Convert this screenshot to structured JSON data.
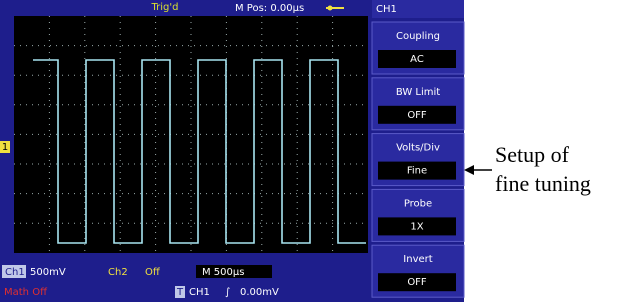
{
  "status_bar": {
    "trigger": "Trig'd",
    "m_pos": "M Pos: 0.00μs"
  },
  "channel_marker": "1",
  "menu": {
    "title": "CH1",
    "items": [
      {
        "label": "Coupling",
        "value": "AC"
      },
      {
        "label": "BW Limit",
        "value": "OFF"
      },
      {
        "label": "Volts/Div",
        "value": "Fine"
      },
      {
        "label": "Probe",
        "value": "1X"
      },
      {
        "label": "Invert",
        "value": "OFF"
      }
    ]
  },
  "bottom_bar": {
    "ch1": "Ch1",
    "ch1_scale": "500mV",
    "ch2": "Ch2",
    "ch2_state": "Off",
    "timebase": "M 500μs",
    "math": "Math Off",
    "trigger_marker": "T",
    "trigger_source": "CH1",
    "trigger_level": "0.00mV"
  },
  "annotation": {
    "lines": [
      "Setup of",
      "fine tuning"
    ]
  }
}
